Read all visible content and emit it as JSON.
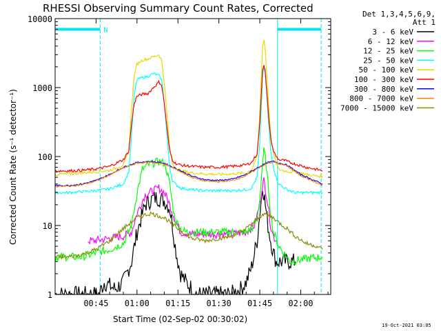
{
  "chart_data": {
    "type": "line",
    "title": "RHESSI Observing Summary Count Rates, Corrected",
    "xlabel": "Start Time (02-Sep-02 00:30:02)",
    "ylabel": "Corrected Count Rate (s⁻¹ detector⁻¹)",
    "y_scale": "log",
    "ylim": [
      1,
      10000
    ],
    "x_units": "minutes after 00:30:02",
    "xlim": [
      0,
      101
    ],
    "x_ticks": [
      {
        "label": "00:45",
        "value": 15
      },
      {
        "label": "01:00",
        "value": 30
      },
      {
        "label": "01:15",
        "value": 45
      },
      {
        "label": "01:30",
        "value": 60
      },
      {
        "label": "01:45",
        "value": 75
      },
      {
        "label": "02:00",
        "value": 90
      }
    ],
    "y_ticks": [
      {
        "label": "1",
        "value": 1
      },
      {
        "label": "10",
        "value": 10
      },
      {
        "label": "100",
        "value": 100
      },
      {
        "label": "1000",
        "value": 1000
      },
      {
        "label": "10000",
        "value": 10000
      }
    ],
    "legend_header": [
      "Det 1,3,4,5,6,9,",
      "Att 1"
    ],
    "legend_position": "right, outside plot",
    "grid": false,
    "markers": [
      {
        "type": "vline",
        "x": 0,
        "color": "#00e5ee"
      },
      {
        "type": "vline",
        "x": 16.5,
        "color": "#00e5ee",
        "dashed": true
      },
      {
        "type": "vline",
        "x": 81.5,
        "color": "#00e5ee"
      },
      {
        "type": "vline",
        "x": 97.5,
        "color": "#00e5ee",
        "dashed": true
      },
      {
        "type": "bar",
        "x0": 0,
        "x1": 16.5,
        "y": 7000,
        "color": "#00e5ee",
        "label": "N"
      },
      {
        "type": "bar",
        "x0": 81.5,
        "x1": 97.5,
        "y": 7000,
        "color": "#00e5ee",
        "label": ""
      }
    ],
    "series": [
      {
        "name": "3 - 6 keV",
        "color": "#000000",
        "x": [
          0,
          10,
          14,
          16,
          18,
          22,
          25,
          28,
          30,
          33,
          36,
          38,
          40,
          42,
          43,
          44,
          45,
          46,
          48,
          52,
          56,
          60,
          64,
          68,
          70,
          72,
          74,
          75,
          76,
          76.5,
          77,
          78,
          79,
          80,
          81,
          82,
          84,
          86,
          88
        ],
        "y": [
          1,
          1,
          1,
          1,
          1.5,
          1.2,
          1.5,
          3,
          8,
          20,
          25,
          25,
          23,
          18,
          10,
          5,
          3,
          2,
          1.5,
          1,
          1,
          1,
          1,
          1.2,
          1.5,
          2.5,
          6,
          15,
          35,
          30,
          20,
          10,
          6,
          4,
          3,
          3,
          3,
          3,
          3
        ]
      },
      {
        "name": "6 - 12 keV",
        "color": "#ff00ff",
        "x": [
          12,
          14,
          20,
          25,
          28,
          30,
          33,
          36,
          38,
          40,
          41,
          42,
          44,
          46,
          50,
          55,
          60,
          65,
          70,
          73,
          75,
          76,
          76.5,
          77,
          78,
          79,
          80,
          81
        ],
        "y": [
          6,
          6,
          6.5,
          7,
          8,
          15,
          28,
          32,
          35,
          30,
          25,
          20,
          12,
          8,
          7.5,
          7.5,
          7.5,
          7.5,
          8,
          10,
          20,
          40,
          45,
          35,
          20,
          10,
          7,
          6
        ]
      },
      {
        "name": "12 - 25 keV",
        "color": "#00ff00",
        "x": [
          0,
          5,
          10,
          15,
          20,
          25,
          28,
          30,
          32,
          34,
          36,
          38,
          40,
          41,
          42,
          43,
          44,
          46,
          48,
          52,
          56,
          60,
          64,
          68,
          70,
          72,
          74,
          75,
          76,
          76.5,
          77,
          78,
          79,
          80,
          82,
          86,
          90,
          95,
          98
        ],
        "y": [
          3.5,
          3.5,
          3.5,
          4,
          4.5,
          5.5,
          10,
          30,
          65,
          75,
          80,
          85,
          80,
          60,
          40,
          20,
          12,
          9,
          8,
          8,
          8,
          8,
          8,
          8,
          8,
          9,
          12,
          25,
          80,
          120,
          100,
          40,
          15,
          8,
          5,
          3,
          3.2,
          3.4,
          3.5
        ]
      },
      {
        "name": "25 - 50 keV",
        "color": "#00ffff",
        "x": [
          0,
          5,
          10,
          15,
          20,
          25,
          27,
          28,
          29,
          30,
          32,
          34,
          36,
          38,
          39,
          40,
          41,
          42,
          43,
          44,
          46,
          50,
          55,
          60,
          65,
          70,
          72,
          74,
          75,
          76,
          76.5,
          77,
          78,
          79,
          80,
          81,
          82,
          84,
          86,
          88,
          92,
          96,
          98
        ],
        "y": [
          30,
          30,
          31,
          32,
          34,
          40,
          60,
          200,
          800,
          1300,
          1400,
          1450,
          1600,
          1500,
          1300,
          600,
          200,
          70,
          45,
          40,
          35,
          33,
          32,
          32,
          32,
          33,
          35,
          50,
          150,
          1500,
          2000,
          1800,
          400,
          120,
          70,
          50,
          40,
          35,
          32,
          30,
          30,
          30,
          30
        ]
      },
      {
        "name": "50 - 100 keV",
        "color": "#e8d800",
        "x": [
          0,
          5,
          10,
          15,
          20,
          25,
          27,
          28,
          29,
          30,
          32,
          34,
          36,
          38,
          39,
          40,
          41,
          42,
          43,
          44,
          46,
          50,
          55,
          60,
          65,
          70,
          72,
          74,
          75,
          76,
          76.5,
          77,
          78,
          79,
          80,
          81,
          82,
          84,
          86,
          88,
          92,
          96,
          98
        ],
        "y": [
          55,
          56,
          58,
          60,
          63,
          75,
          120,
          500,
          1500,
          2200,
          2500,
          2600,
          2800,
          3000,
          2500,
          1200,
          400,
          130,
          80,
          70,
          62,
          58,
          56,
          55,
          56,
          58,
          65,
          100,
          400,
          4000,
          5000,
          3500,
          800,
          200,
          110,
          80,
          65,
          62,
          60,
          60,
          55,
          52,
          52
        ]
      },
      {
        "name": "100 - 300 keV",
        "color": "#ff0000",
        "x": [
          0,
          5,
          10,
          15,
          20,
          25,
          27,
          28,
          29,
          30,
          32,
          34,
          36,
          38,
          39,
          40,
          41,
          42,
          43,
          44,
          46,
          50,
          55,
          60,
          65,
          70,
          72,
          74,
          75,
          76,
          76.5,
          77,
          78,
          79,
          80,
          81,
          82,
          84,
          86,
          88,
          92,
          96,
          98
        ],
        "y": [
          62,
          62,
          63,
          66,
          72,
          90,
          120,
          300,
          600,
          750,
          800,
          820,
          1000,
          1200,
          1100,
          600,
          250,
          120,
          90,
          80,
          75,
          72,
          70,
          70,
          72,
          76,
          82,
          110,
          300,
          1800,
          2200,
          1600,
          500,
          180,
          120,
          100,
          90,
          88,
          82,
          78,
          70,
          65,
          62
        ]
      },
      {
        "name": "300 - 800 keV",
        "color": "#0000ff",
        "x": [
          0,
          5,
          10,
          15,
          20,
          25,
          30,
          35,
          40,
          45,
          50,
          55,
          60,
          65,
          70,
          75,
          78,
          80,
          85,
          90,
          95,
          98
        ],
        "y": [
          38,
          38,
          40,
          45,
          55,
          70,
          82,
          85,
          80,
          65,
          52,
          46,
          45,
          47,
          55,
          72,
          82,
          85,
          75,
          55,
          45,
          40
        ]
      },
      {
        "name": "800 - 7000 keV",
        "color": "#ff8000",
        "x": [
          0,
          5,
          10,
          15,
          20,
          25,
          30,
          35,
          40,
          45,
          50,
          55,
          60,
          65,
          70,
          75,
          78,
          80,
          85,
          90,
          95,
          98
        ],
        "y": [
          37,
          37,
          39,
          44,
          54,
          68,
          80,
          83,
          78,
          63,
          50,
          44,
          43,
          45,
          53,
          70,
          80,
          83,
          73,
          53,
          43,
          38
        ]
      },
      {
        "name": "7000 - 15000 keV",
        "color": "#8b8b00",
        "x": [
          0,
          5,
          10,
          15,
          20,
          25,
          30,
          35,
          40,
          45,
          50,
          55,
          60,
          65,
          70,
          72,
          74,
          75,
          76,
          78,
          80,
          82,
          85,
          88,
          92,
          96,
          98
        ],
        "y": [
          3.5,
          3.5,
          3.8,
          4.5,
          6,
          9,
          13,
          15,
          13,
          9,
          6.5,
          6,
          6.5,
          7,
          9,
          10.5,
          12,
          13,
          15,
          14,
          13,
          11,
          9,
          7,
          5.5,
          5,
          4.5
        ]
      }
    ]
  },
  "footer": {
    "timestamp": "19-Oct-2021 03:05"
  }
}
